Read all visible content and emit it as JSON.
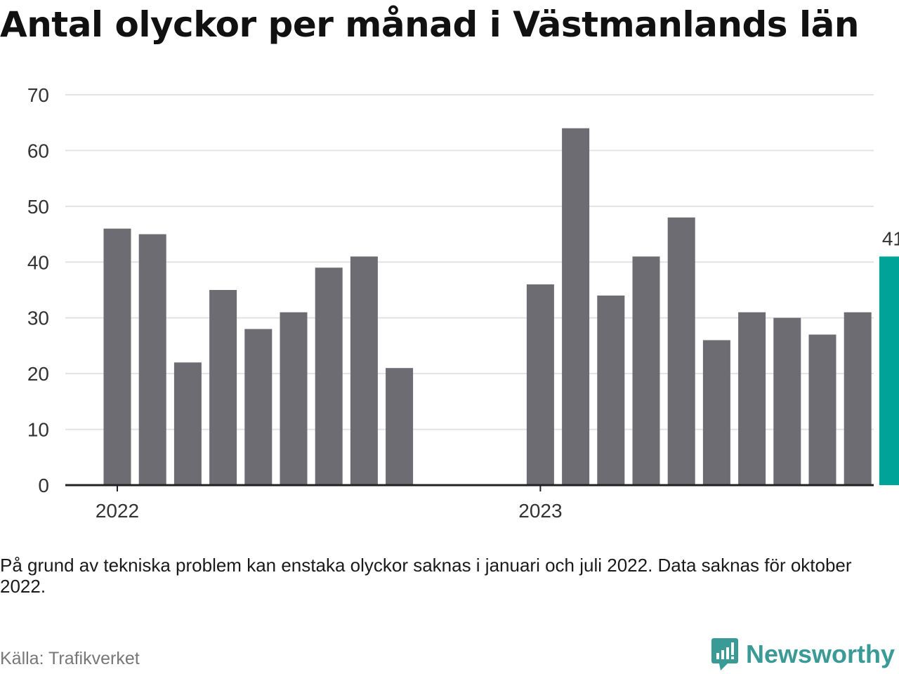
{
  "title": "Antal olyckor per månad i Västmanlands län",
  "note": "På grund av tekniska problem kan enstaka olyckor saknas i januari och juli 2022. Data saknas för oktober 2022.",
  "source": "Källa: Trafikverket",
  "brand": {
    "name": "Newsworthy",
    "icon": "newsworthy-logo-icon",
    "color": "#3a9a96"
  },
  "colors": {
    "bar": "#6d6c72",
    "highlight": "#00a398",
    "grid": "#e3e3e3",
    "axis": "#222222"
  },
  "chart_data": {
    "type": "bar",
    "title": "Antal olyckor per månad i Västmanlands län",
    "xlabel": "",
    "ylabel": "",
    "ylim": [
      0,
      70
    ],
    "yticks": [
      0,
      10,
      20,
      30,
      40,
      50,
      60,
      70
    ],
    "grid": true,
    "categories": [
      "2022-01",
      "2022-02",
      "2022-03",
      "2022-04",
      "2022-05",
      "2022-06",
      "2022-07",
      "2022-08",
      "2022-09",
      "2022-10",
      "2023-01",
      "2023-02",
      "2023-03",
      "2023-04",
      "2023-05",
      "2023-06",
      "2023-07",
      "2023-08",
      "2023-09",
      "2023-10",
      "2023-11"
    ],
    "values": [
      46,
      45,
      22,
      35,
      28,
      31,
      39,
      41,
      21,
      null,
      36,
      64,
      34,
      41,
      48,
      26,
      31,
      30,
      27,
      31,
      41
    ],
    "x_tick_labels": [
      {
        "category": "2022-01",
        "label": "2022"
      },
      {
        "category": "2023-01",
        "label": "2023"
      }
    ],
    "highlight": {
      "category": "2023-11",
      "label": "41"
    }
  }
}
